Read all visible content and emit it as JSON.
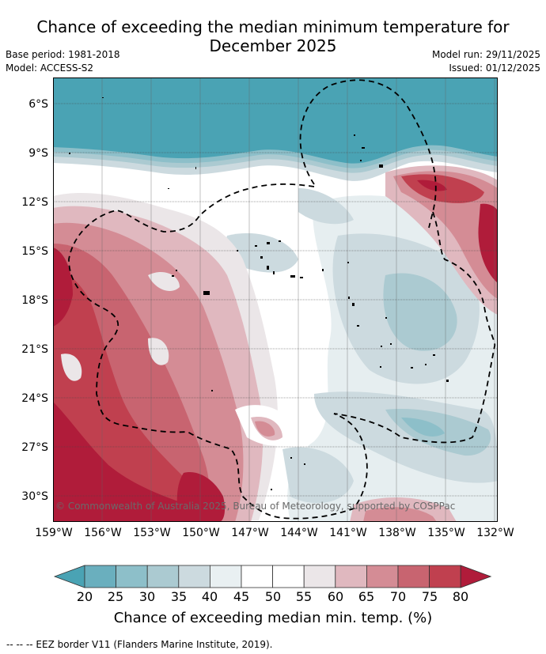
{
  "title": "Chance of exceeding the median minimum temperature for\nDecember 2025",
  "base_period": "Base period: 1981-2018",
  "model": "Model: ACCESS-S2",
  "model_run": "Model run: 29/11/2025",
  "issued": "Issued: 01/12/2025",
  "copyright": "© Commonwealth of Australia 2025, Bureau of Meteorology, supported by COSPPac",
  "latitudes": [
    "6°S",
    "9°S",
    "12°S",
    "15°S",
    "18°S",
    "21°S",
    "24°S",
    "27°S",
    "30°S"
  ],
  "longitudes": [
    "159°W",
    "156°W",
    "153°W",
    "150°W",
    "147°W",
    "144°W",
    "141°W",
    "138°W",
    "135°W",
    "132°W"
  ],
  "colorbar": {
    "title": "Chance of exceeding median min. temp. (%)",
    "ticks": [
      "20",
      "25",
      "30",
      "35",
      "40",
      "45",
      "50",
      "55",
      "60",
      "65",
      "70",
      "75",
      "80"
    ],
    "colors": [
      "#4aa3b4",
      "#6aafbe",
      "#8dbfc9",
      "#abcad1",
      "#ccdadf",
      "#e9f0f2",
      "#ffffff",
      "#ffffff",
      "#ebe6e8",
      "#e0b8bf",
      "#d48c95",
      "#c86470",
      "#c0404f",
      "#b01c3a"
    ]
  },
  "eez_note": "--  --  -- EEZ border V11 (Flanders Marine Institute, 2019)."
}
